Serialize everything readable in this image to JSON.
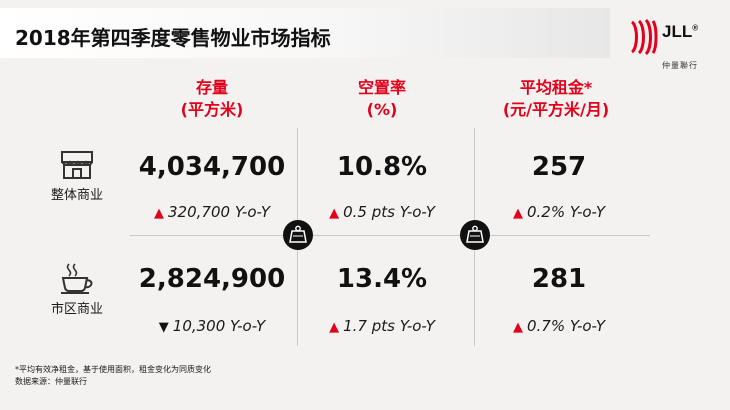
{
  "title": "2018年第四季度零售物业市场指标",
  "logo": {
    "text": "JLL",
    "reg": "®",
    "cn": "仲量聯行"
  },
  "columns": [
    {
      "line1": "存量",
      "line2": "(平方米)"
    },
    {
      "line1": "空置率",
      "line2": "(%)"
    },
    {
      "line1": "平均租金*",
      "line2": "(元/平方米/月)"
    }
  ],
  "rows": [
    {
      "label": "整体商业",
      "icon": "storefront-icon",
      "cells": [
        {
          "value": "4,034,700",
          "change": "320,700 Y-o-Y",
          "direction": "up"
        },
        {
          "value": "10.8%",
          "change": "0.5 pts Y-o-Y",
          "direction": "up"
        },
        {
          "value": "257",
          "change": "0.2% Y-o-Y",
          "direction": "up"
        }
      ]
    },
    {
      "label": "市区商业",
      "icon": "coffee-cup-icon",
      "cells": [
        {
          "value": "2,824,900",
          "change": "10,300 Y-o-Y",
          "direction": "down"
        },
        {
          "value": "13.4%",
          "change": "1.7 pts Y-o-Y",
          "direction": "up"
        },
        {
          "value": "281",
          "change": "0.7% Y-o-Y",
          "direction": "up"
        }
      ]
    }
  ],
  "arrows": {
    "up": "▲",
    "down": "▼"
  },
  "footnotes": {
    "note": "*平均有效净租金，基于使用面积，租金变化为同质变化",
    "source": "数据来源：仲量联行"
  },
  "colors": {
    "accent": "#e3001b",
    "background": "#f4f2f0"
  }
}
